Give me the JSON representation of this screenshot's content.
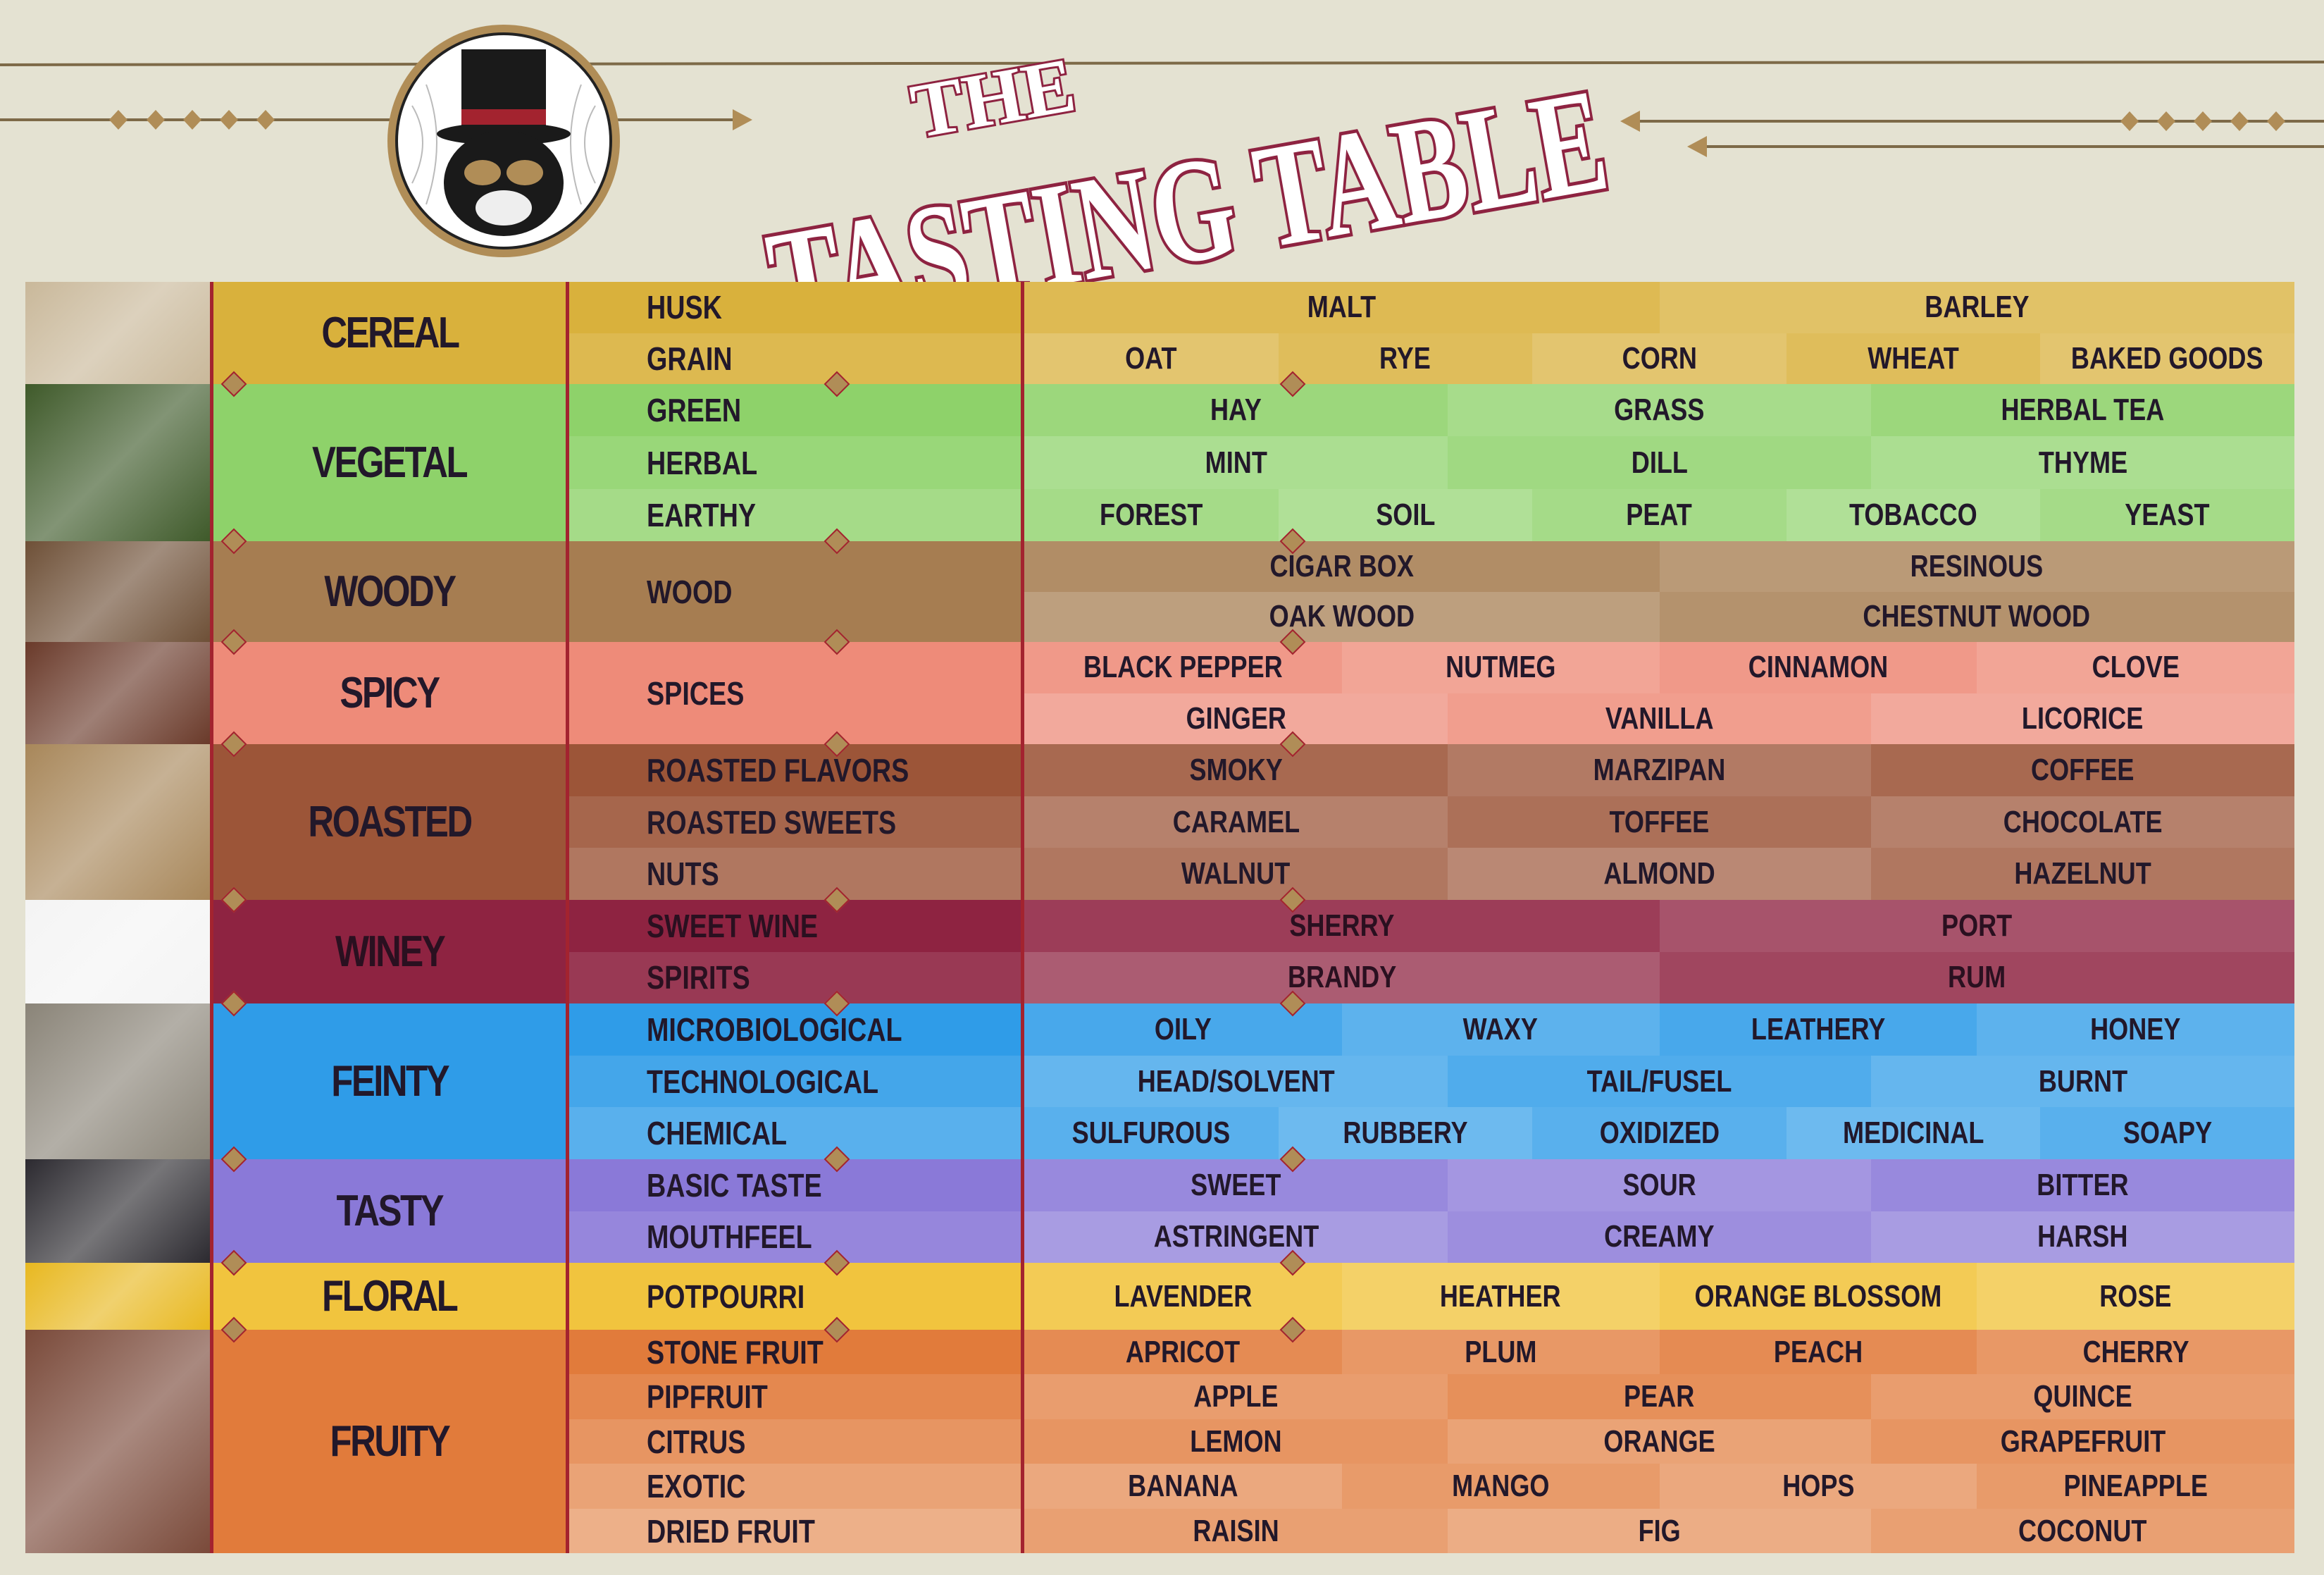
{
  "header": {
    "title_small": "THE",
    "title_large": "TASTING TABLE",
    "logo": "monkey-with-top-hat-logo"
  },
  "colors": {
    "background": "#e4e2d2",
    "divider": "#a3232f",
    "accent_gold": "#b08d57",
    "text": "#22182a"
  },
  "categories": [
    {
      "name": "CEREAL",
      "color": "#d9b13c",
      "photo": "#c9b89a",
      "subs": [
        {
          "name": "HUSK",
          "rows": [
            [
              "MALT",
              "BARLEY"
            ]
          ]
        },
        {
          "name": "GRAIN",
          "rows": [
            [
              "OAT",
              "RYE",
              "CORN",
              "WHEAT",
              "BAKED GOODS"
            ]
          ]
        }
      ]
    },
    {
      "name": "VEGETAL",
      "color": "#8ed26a",
      "photo": "#3f5a2a",
      "subs": [
        {
          "name": "GREEN",
          "rows": [
            [
              "HAY",
              "GRASS",
              "HERBAL TEA"
            ]
          ]
        },
        {
          "name": "HERBAL",
          "rows": [
            [
              "MINT",
              "DILL",
              "THYME"
            ]
          ]
        },
        {
          "name": "EARTHY",
          "rows": [
            [
              "FOREST",
              "SOIL",
              "PEAT",
              "TOBACCO",
              "YEAST"
            ]
          ]
        }
      ]
    },
    {
      "name": "WOODY",
      "color": "#a67d51",
      "photo": "#6e5037",
      "subs": [
        {
          "name": "WOOD",
          "rows": [
            [
              "CIGAR BOX",
              "RESINOUS"
            ],
            [
              "OAK WOOD",
              "CHESTNUT WOOD"
            ]
          ]
        }
      ]
    },
    {
      "name": "SPICY",
      "color": "#ee8b79",
      "photo": "#6a3a2a",
      "subs": [
        {
          "name": "SPICES",
          "rows": [
            [
              "BLACK PEPPER",
              "NUTMEG",
              "CINNAMON",
              "CLOVE"
            ],
            [
              "GINGER",
              "VANILLA",
              "LICORICE"
            ]
          ]
        }
      ]
    },
    {
      "name": "ROASTED",
      "color": "#9c5538",
      "photo": "#a8875a",
      "subs": [
        {
          "name": "ROASTED FLAVORS",
          "rows": [
            [
              "SMOKY",
              "MARZIPAN",
              "COFFEE"
            ]
          ]
        },
        {
          "name": "ROASTED SWEETS",
          "rows": [
            [
              "CARAMEL",
              "TOFFEE",
              "CHOCOLATE"
            ]
          ]
        },
        {
          "name": "NUTS",
          "rows": [
            [
              "WALNUT",
              "ALMOND",
              "HAZELNUT"
            ]
          ]
        }
      ]
    },
    {
      "name": "WINEY",
      "color": "#8e2341",
      "photo": "#f4f4f4",
      "subs": [
        {
          "name": "SWEET WINE",
          "rows": [
            [
              "SHERRY",
              "PORT"
            ]
          ]
        },
        {
          "name": "SPIRITS",
          "rows": [
            [
              "BRANDY",
              "RUM"
            ]
          ]
        }
      ]
    },
    {
      "name": "FEINTY",
      "color": "#2f9ce8",
      "photo": "#8a8478",
      "subs": [
        {
          "name": "MICROBIOLOGICAL",
          "rows": [
            [
              "OILY",
              "WAXY",
              "LEATHERY",
              "HONEY"
            ]
          ]
        },
        {
          "name": "TECHNOLOGICAL",
          "rows": [
            [
              "HEAD/SOLVENT",
              "TAIL/FUSEL",
              "BURNT"
            ]
          ]
        },
        {
          "name": "CHEMICAL",
          "rows": [
            [
              "SULFUROUS",
              "RUBBERY",
              "OXIDIZED",
              "MEDICINAL",
              "SOAPY"
            ]
          ]
        }
      ]
    },
    {
      "name": "TASTY",
      "color": "#8a79d8",
      "photo": "#2c2a30",
      "subs": [
        {
          "name": "BASIC TASTE",
          "rows": [
            [
              "SWEET",
              "SOUR",
              "BITTER"
            ]
          ]
        },
        {
          "name": "MOUTHFEEL",
          "rows": [
            [
              "ASTRINGENT",
              "CREAMY",
              "HARSH"
            ]
          ]
        }
      ]
    },
    {
      "name": "FLORAL",
      "color": "#f1c43e",
      "photo": "#e8b820",
      "subs": [
        {
          "name": "POTPOURRI",
          "rows": [
            [
              "LAVENDER",
              "HEATHER",
              "ORANGE BLOSSOM",
              "ROSE"
            ]
          ]
        }
      ]
    },
    {
      "name": "FRUITY",
      "color": "#e17b3b",
      "photo": "#7a4a3a",
      "subs": [
        {
          "name": "STONE FRUIT",
          "rows": [
            [
              "APRICOT",
              "PLUM",
              "PEACH",
              "CHERRY"
            ]
          ]
        },
        {
          "name": "PIPFRUIT",
          "rows": [
            [
              "APPLE",
              "PEAR",
              "QUINCE"
            ]
          ]
        },
        {
          "name": "CITRUS",
          "rows": [
            [
              "LEMON",
              "ORANGE",
              "GRAPEFRUIT"
            ]
          ]
        },
        {
          "name": "EXOTIC",
          "rows": [
            [
              "BANANA",
              "MANGO",
              "HOPS",
              "PINEAPPLE"
            ]
          ]
        },
        {
          "name": "DRIED FRUIT",
          "rows": [
            [
              "RAISIN",
              "FIG",
              "COCONUT"
            ]
          ]
        }
      ]
    }
  ]
}
